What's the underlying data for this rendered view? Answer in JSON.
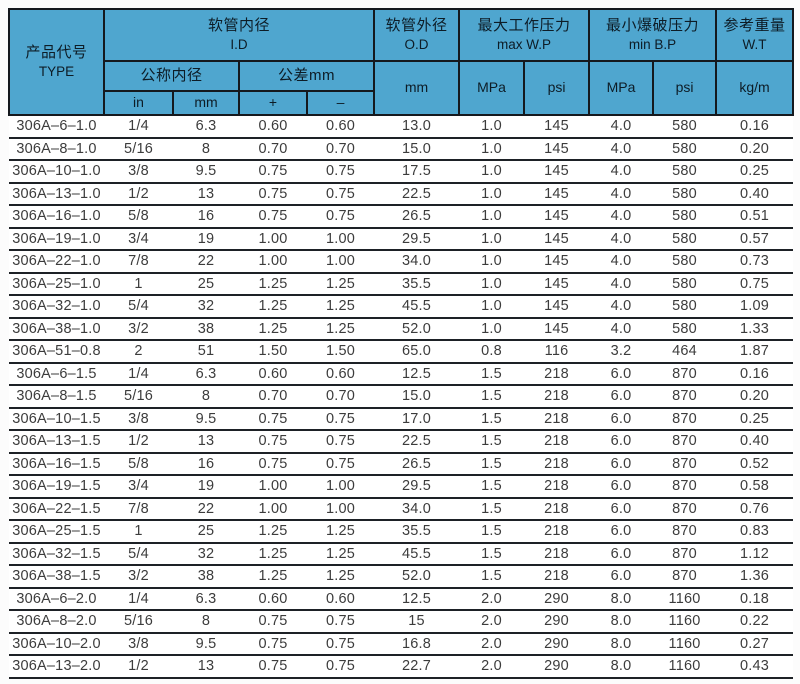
{
  "colors": {
    "header_bg": "#4fa6cf",
    "border": "#15191e",
    "header_text": "#0d1c26",
    "body_text": "#3c3c3c",
    "page_bg": "#fcfcfc"
  },
  "table": {
    "header": {
      "type": {
        "zh": "产品代号",
        "en": "TYPE"
      },
      "id_group": {
        "zh": "软管内径",
        "en": "I.D"
      },
      "od_group": {
        "zh": "软管外径",
        "en": "O.D"
      },
      "maxwp_group": {
        "zh": "最大工作压力",
        "en": "max W.P"
      },
      "minbp_group": {
        "zh": "最小爆破压力",
        "en": "min B.P"
      },
      "wt_group": {
        "zh": "参考重量",
        "en": "W.T"
      },
      "nominal_id": "公称内径",
      "tolerance": "公差mm",
      "sub_in": "in",
      "sub_mm": "mm",
      "sub_plus": "+",
      "sub_minus": "–",
      "od_unit": "mm",
      "maxwp_mpa": "MPa",
      "maxwp_psi": "psi",
      "minbp_mpa": "MPa",
      "minbp_psi": "psi",
      "wt_unit": "kg/m"
    },
    "rows": [
      [
        "306A–6–1.0",
        "1/4",
        "6.3",
        "0.60",
        "0.60",
        "13.0",
        "1.0",
        "145",
        "4.0",
        "580",
        "0.16"
      ],
      [
        "306A–8–1.0",
        "5/16",
        "8",
        "0.70",
        "0.70",
        "15.0",
        "1.0",
        "145",
        "4.0",
        "580",
        "0.20"
      ],
      [
        "306A–10–1.0",
        "3/8",
        "9.5",
        "0.75",
        "0.75",
        "17.5",
        "1.0",
        "145",
        "4.0",
        "580",
        "0.25"
      ],
      [
        "306A–13–1.0",
        "1/2",
        "13",
        "0.75",
        "0.75",
        "22.5",
        "1.0",
        "145",
        "4.0",
        "580",
        "0.40"
      ],
      [
        "306A–16–1.0",
        "5/8",
        "16",
        "0.75",
        "0.75",
        "26.5",
        "1.0",
        "145",
        "4.0",
        "580",
        "0.51"
      ],
      [
        "306A–19–1.0",
        "3/4",
        "19",
        "1.00",
        "1.00",
        "29.5",
        "1.0",
        "145",
        "4.0",
        "580",
        "0.57"
      ],
      [
        "306A–22–1.0",
        "7/8",
        "22",
        "1.00",
        "1.00",
        "34.0",
        "1.0",
        "145",
        "4.0",
        "580",
        "0.73"
      ],
      [
        "306A–25–1.0",
        "1",
        "25",
        "1.25",
        "1.25",
        "35.5",
        "1.0",
        "145",
        "4.0",
        "580",
        "0.75"
      ],
      [
        "306A–32–1.0",
        "5/4",
        "32",
        "1.25",
        "1.25",
        "45.5",
        "1.0",
        "145",
        "4.0",
        "580",
        "1.09"
      ],
      [
        "306A–38–1.0",
        "3/2",
        "38",
        "1.25",
        "1.25",
        "52.0",
        "1.0",
        "145",
        "4.0",
        "580",
        "1.33"
      ],
      [
        "306A–51–0.8",
        "2",
        "51",
        "1.50",
        "1.50",
        "65.0",
        "0.8",
        "116",
        "3.2",
        "464",
        "1.87"
      ],
      [
        "306A–6–1.5",
        "1/4",
        "6.3",
        "0.60",
        "0.60",
        "12.5",
        "1.5",
        "218",
        "6.0",
        "870",
        "0.16"
      ],
      [
        "306A–8–1.5",
        "5/16",
        "8",
        "0.70",
        "0.70",
        "15.0",
        "1.5",
        "218",
        "6.0",
        "870",
        "0.20"
      ],
      [
        "306A–10–1.5",
        "3/8",
        "9.5",
        "0.75",
        "0.75",
        "17.0",
        "1.5",
        "218",
        "6.0",
        "870",
        "0.25"
      ],
      [
        "306A–13–1.5",
        "1/2",
        "13",
        "0.75",
        "0.75",
        "22.5",
        "1.5",
        "218",
        "6.0",
        "870",
        "0.40"
      ],
      [
        "306A–16–1.5",
        "5/8",
        "16",
        "0.75",
        "0.75",
        "26.5",
        "1.5",
        "218",
        "6.0",
        "870",
        "0.52"
      ],
      [
        "306A–19–1.5",
        "3/4",
        "19",
        "1.00",
        "1.00",
        "29.5",
        "1.5",
        "218",
        "6.0",
        "870",
        "0.58"
      ],
      [
        "306A–22–1.5",
        "7/8",
        "22",
        "1.00",
        "1.00",
        "34.0",
        "1.5",
        "218",
        "6.0",
        "870",
        "0.76"
      ],
      [
        "306A–25–1.5",
        "1",
        "25",
        "1.25",
        "1.25",
        "35.5",
        "1.5",
        "218",
        "6.0",
        "870",
        "0.83"
      ],
      [
        "306A–32–1.5",
        "5/4",
        "32",
        "1.25",
        "1.25",
        "45.5",
        "1.5",
        "218",
        "6.0",
        "870",
        "1.12"
      ],
      [
        "306A–38–1.5",
        "3/2",
        "38",
        "1.25",
        "1.25",
        "52.0",
        "1.5",
        "218",
        "6.0",
        "870",
        "1.36"
      ],
      [
        "306A–6–2.0",
        "1/4",
        "6.3",
        "0.60",
        "0.60",
        "12.5",
        "2.0",
        "290",
        "8.0",
        "1160",
        "0.18"
      ],
      [
        "306A–8–2.0",
        "5/16",
        "8",
        "0.75",
        "0.75",
        "15",
        "2.0",
        "290",
        "8.0",
        "1160",
        "0.22"
      ],
      [
        "306A–10–2.0",
        "3/8",
        "9.5",
        "0.75",
        "0.75",
        "16.8",
        "2.0",
        "290",
        "8.0",
        "1160",
        "0.27"
      ],
      [
        "306A–13–2.0",
        "1/2",
        "13",
        "0.75",
        "0.75",
        "22.7",
        "2.0",
        "290",
        "8.0",
        "1160",
        "0.43"
      ]
    ]
  }
}
